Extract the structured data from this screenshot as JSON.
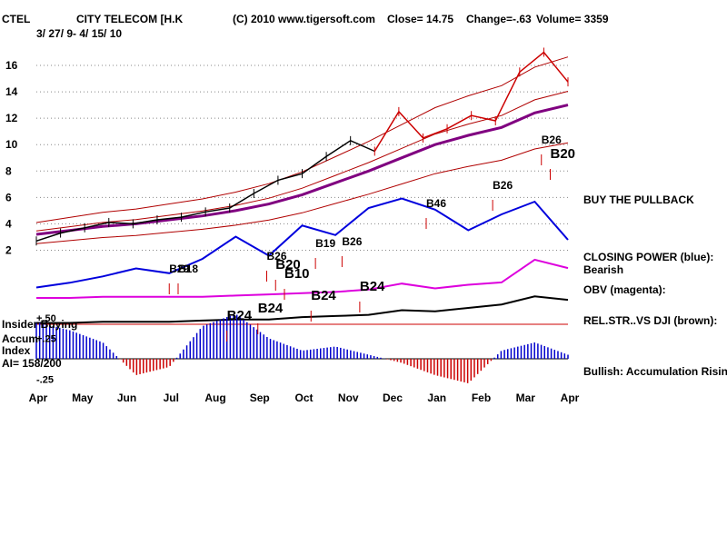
{
  "header": {
    "ticker": "CTEL",
    "name": "CITY TELECOM [H.K",
    "copyright": "(C) 2010 www.tigersoft.com",
    "close": "Close=  14.75",
    "change": "Change=-.63",
    "volume": "Volume= 3359",
    "date_range": "3/ 27/ 9- 4/ 15/ 10"
  },
  "labels": {
    "buy_pullback": "BUY THE PULLBACK",
    "closing_power": "CLOSING POWER (blue):",
    "bearish": "Bearish",
    "obv": "OBV (magenta):",
    "rel_str": "REL.STR..VS DJI (brown):",
    "insider": "Insider Buying",
    "accum": "Accum",
    "index": "Index",
    "ai": "AI= 158/200",
    "bullish": "Bullish: Accumulation Rising"
  },
  "colors": {
    "price_early": "#000000",
    "price_late": "#cc0000",
    "band": "#b00000",
    "ma": "#800080",
    "closing_power": "#0000dd",
    "obv": "#dd00dd",
    "rel_str": "#000000",
    "acc_pos": "#0000cc",
    "acc_neg": "#cc0000",
    "grid": "#888888"
  },
  "chart_data": {
    "type": "line",
    "title": "CITY TELECOM [H.K",
    "y_ticks": [
      "2",
      "4",
      "6",
      "8",
      "10",
      "12",
      "14",
      "16"
    ],
    "ylim": [
      0,
      18
    ],
    "months": [
      "Apr",
      "May",
      "Jun",
      "Jul",
      "Aug",
      "Sep",
      "Oct",
      "Nov",
      "Dec",
      "Jan",
      "Feb",
      "Mar",
      "Apr"
    ],
    "acc_ticks": [
      "+.50",
      "+.25",
      "-.25"
    ],
    "price_close": [
      2.7,
      3.3,
      3.7,
      4.1,
      4.0,
      4.3,
      4.5,
      4.9,
      5.2,
      6.3,
      7.3,
      7.8,
      9.1,
      10.3,
      9.5,
      12.5,
      10.5,
      11.2,
      12.2,
      11.8,
      15.5,
      17.0,
      14.75
    ],
    "ma": [
      3.2,
      3.5,
      3.8,
      4.0,
      4.3,
      4.6,
      5.0,
      5.5,
      6.2,
      7.1,
      8.0,
      9.0,
      10.0,
      10.7,
      11.3,
      12.4,
      13.0
    ],
    "closing_power": [
      0.2,
      0.5,
      0.9,
      1.4,
      1.1,
      2.0,
      3.4,
      2.2,
      4.1,
      3.5,
      5.2,
      5.8,
      5.1,
      3.8,
      4.8,
      5.6,
      3.2
    ],
    "obv": [
      0.0,
      0.0,
      0.1,
      0.1,
      0.1,
      0.1,
      0.2,
      0.3,
      0.4,
      0.5,
      0.7,
      1.2,
      0.8,
      1.1,
      1.3,
      3.2,
      2.5
    ],
    "rel_str": [
      -3.3,
      -3.3,
      -3.2,
      -3.2,
      -3.2,
      -3.1,
      -3.0,
      -3.0,
      -2.8,
      -2.7,
      -2.6,
      -2.2,
      -2.3,
      -2.0,
      -1.7,
      -1.0,
      -1.3
    ],
    "accumulation": [
      0.45,
      0.35,
      0.2,
      -0.2,
      -0.1,
      0.4,
      0.55,
      0.25,
      0.1,
      0.15,
      0.05,
      -0.05,
      -0.2,
      -0.3,
      0.1,
      0.2,
      0.05
    ],
    "signals": [
      {
        "text": "B29",
        "month": 3.0
      },
      {
        "text": "B18",
        "month": 3.2
      },
      {
        "text": "B26",
        "month": 5.2
      },
      {
        "text": "B20",
        "month": 5.4
      },
      {
        "text": "B10",
        "month": 5.6
      },
      {
        "text": "B19",
        "month": 6.3
      },
      {
        "text": "B26",
        "month": 6.9
      },
      {
        "text": "B24",
        "month": 6.2
      },
      {
        "text": "B24",
        "month": 7.3
      },
      {
        "text": "B24",
        "month": 4.3
      },
      {
        "text": "B24",
        "month": 5.0
      },
      {
        "text": "B46",
        "month": 8.8
      },
      {
        "text": "B26",
        "month": 10.3
      },
      {
        "text": "B26",
        "month": 11.4
      },
      {
        "text": "B20",
        "month": 11.6
      }
    ]
  }
}
